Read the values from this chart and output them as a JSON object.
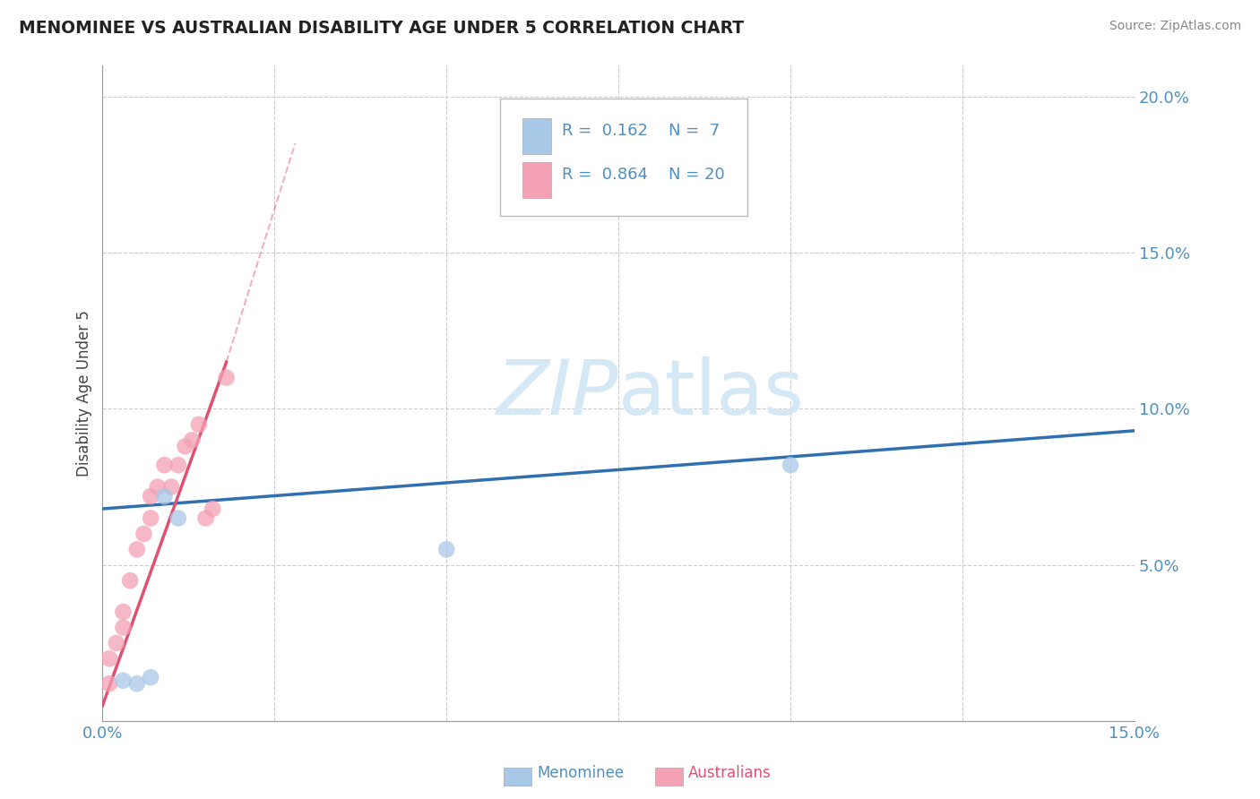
{
  "title": "MENOMINEE VS AUSTRALIAN DISABILITY AGE UNDER 5 CORRELATION CHART",
  "source": "Source: ZipAtlas.com",
  "ylabel_label": "Disability Age Under 5",
  "xlim": [
    0.0,
    0.15
  ],
  "ylim": [
    0.0,
    0.21
  ],
  "yticks": [
    0.0,
    0.05,
    0.1,
    0.15,
    0.2
  ],
  "ytick_labels": [
    "",
    "5.0%",
    "10.0%",
    "15.0%",
    "20.0%"
  ],
  "xticks": [
    0.0,
    0.025,
    0.05,
    0.075,
    0.1,
    0.125,
    0.15
  ],
  "menominee_x": [
    0.003,
    0.005,
    0.007,
    0.009,
    0.011,
    0.05,
    0.1
  ],
  "menominee_y": [
    0.013,
    0.012,
    0.014,
    0.072,
    0.065,
    0.055,
    0.082
  ],
  "australians_x": [
    0.001,
    0.001,
    0.002,
    0.003,
    0.003,
    0.004,
    0.005,
    0.006,
    0.007,
    0.007,
    0.008,
    0.009,
    0.01,
    0.011,
    0.012,
    0.013,
    0.014,
    0.015,
    0.016,
    0.018
  ],
  "australians_y": [
    0.012,
    0.02,
    0.025,
    0.03,
    0.035,
    0.045,
    0.055,
    0.06,
    0.065,
    0.072,
    0.075,
    0.082,
    0.075,
    0.082,
    0.088,
    0.09,
    0.095,
    0.065,
    0.068,
    0.11
  ],
  "menominee_R": 0.162,
  "menominee_N": 7,
  "australians_R": 0.864,
  "australians_N": 20,
  "blue_scatter_color": "#a8c8e8",
  "pink_scatter_color": "#f4a0b5",
  "blue_line_color": "#3070b0",
  "pink_line_color": "#e05070",
  "pink_dash_color": "#e8a0b0",
  "watermark_color": "#d5e8f5",
  "background_color": "#ffffff",
  "grid_color": "#cccccc",
  "tick_color": "#5090c0",
  "legend_box_color": "#dddddd"
}
